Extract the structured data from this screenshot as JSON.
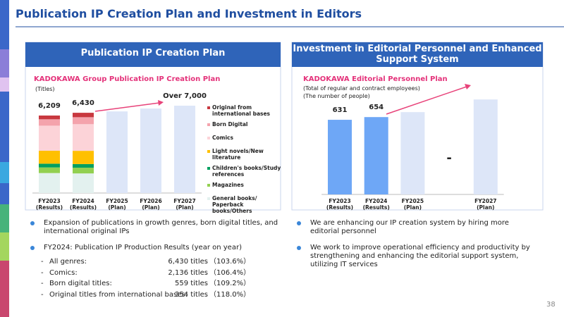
{
  "header": {
    "title": "Publication IP Creation Plan and Investment in Editors"
  },
  "panels": [
    {
      "title": "Publication IP Creation Plan"
    },
    {
      "title": "Investment in Editorial Personnel and Enhanced Support System"
    }
  ],
  "chart_data": [
    {
      "type": "stacked-bar",
      "title": "KADOKAWA Group Publication IP Creation Plan",
      "notes": [
        "(Titles)"
      ],
      "categories": [
        "FY2023",
        "FY2024",
        "FY2025",
        "FY2026",
        "FY2027"
      ],
      "category_notes": [
        "(Results)",
        "(Results)",
        "(Plan)",
        "(Plan)",
        "(Plan)"
      ],
      "series": [
        {
          "name": "General books/ Paperback books/Others",
          "color": "#e3f1ef",
          "values": [
            1600,
            1570,
            null,
            null,
            null
          ]
        },
        {
          "name": "Magazines",
          "color": "#92d050",
          "values": [
            450,
            460,
            null,
            null,
            null
          ]
        },
        {
          "name": "Children's books/Study references",
          "color": "#00a060",
          "values": [
            300,
            290,
            null,
            null,
            null
          ]
        },
        {
          "name": "Light novels/New literature",
          "color": "#ffc000",
          "values": [
            1039,
            1061,
            null,
            null,
            null
          ]
        },
        {
          "name": "Comics",
          "color": "#fcd3d8",
          "values": [
            2008,
            2136,
            null,
            null,
            null
          ]
        },
        {
          "name": "Born Digital",
          "color": "#f4a3ac",
          "values": [
            512,
            559,
            null,
            null,
            null
          ]
        },
        {
          "name": "Original from international bases",
          "color": "#c8383f",
          "values": [
            300,
            354,
            null,
            null,
            null
          ]
        },
        {
          "color": "#dde6f8",
          "values": [
            null,
            null,
            6540,
            6770,
            7000
          ]
        }
      ],
      "total_labels": [
        "6,209",
        "6,430",
        null,
        null,
        "Over 7,000"
      ],
      "ylim": [
        0,
        7000
      ]
    },
    {
      "type": "bar",
      "title": "KADOKAWA Editorial Personnel Plan",
      "notes": [
        "(Total of regular and contract employees)",
        "(The number of people)"
      ],
      "categories": [
        "FY2023",
        "FY2024",
        "FY2025",
        null,
        "FY2027"
      ],
      "category_notes": [
        "(Results)",
        "(Results)",
        "(Plan)",
        null,
        "(Plan)"
      ],
      "series": [
        {
          "color": "#6ea7f6",
          "values": [
            631,
            654,
            null,
            null,
            null
          ],
          "value_labels": [
            "631",
            "654",
            null,
            null,
            null
          ]
        },
        {
          "color": "#dde6f8",
          "values": [
            null,
            null,
            696,
            null,
            803
          ]
        }
      ],
      "gap_label": "-",
      "ylim": [
        0,
        810
      ]
    }
  ],
  "left_text": {
    "bullets": [
      "Expansion of publications in growth genres, born digital titles, and international original IPs",
      "FY2024: Publication IP Production Results (year on year)"
    ],
    "rows": [
      [
        "-",
        "All genres:",
        "6,430 titles",
        "（103.6%）"
      ],
      [
        "-",
        "Comics:",
        "2,136 titles",
        "（106.4%）"
      ],
      [
        "-",
        "Born digital titles:",
        "559 titles",
        "（109.2%）"
      ],
      [
        "-",
        "Original titles from international bases:",
        "354 titles",
        "（118.0%）"
      ]
    ]
  },
  "right_text": {
    "bullets": [
      "We are enhancing our IP creation system by hiring more editorial personnel",
      "We work to improve operational efficiency and productivity by strengthening and enhancing the editorial support system, utilizing IT services"
    ]
  },
  "page_number": "38"
}
